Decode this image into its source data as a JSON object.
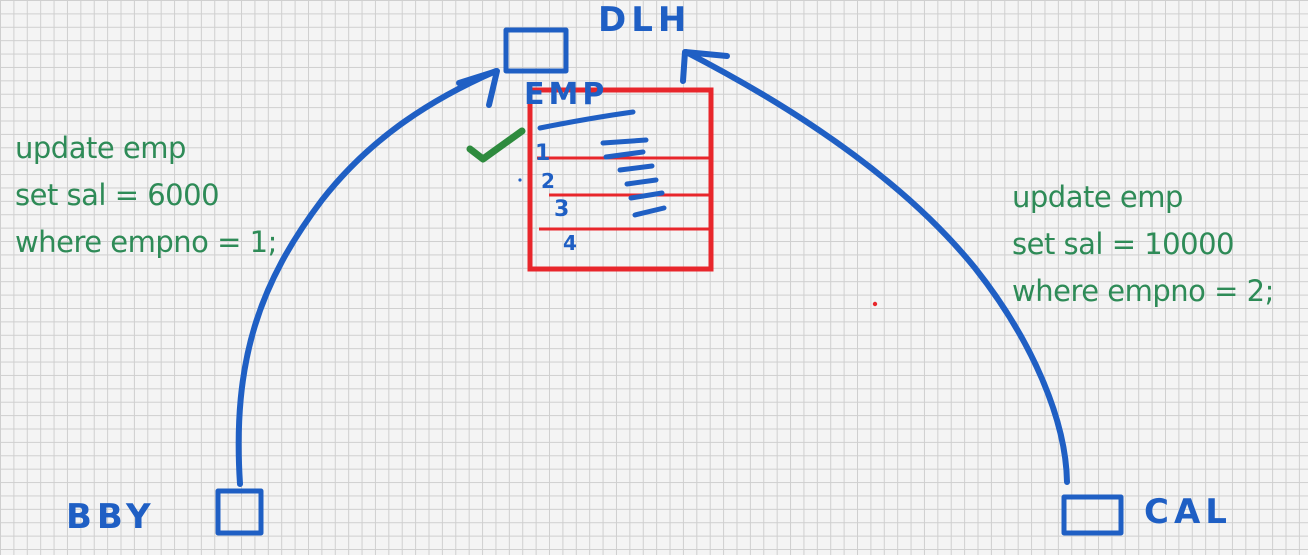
{
  "nodes": {
    "dlh": "DLH",
    "bby": "BBY",
    "cal": "CAL"
  },
  "table": {
    "name": "EMP",
    "rows": [
      "1",
      "2",
      "3",
      "4"
    ]
  },
  "query_bby": {
    "line1": "update emp",
    "line2": "set sal = 6000",
    "line3": "where empno = 1;"
  },
  "query_cal": {
    "line1": "update emp",
    "line2": "set sal = 10000",
    "line3": "where empno = 2;"
  },
  "colors": {
    "ink": "#1f5fc4",
    "table": "#e8262b",
    "code": "#2e8b57",
    "check": "#2e8b3e",
    "grid": "#cfcfcf"
  },
  "icons": [
    "checkmark-icon"
  ]
}
